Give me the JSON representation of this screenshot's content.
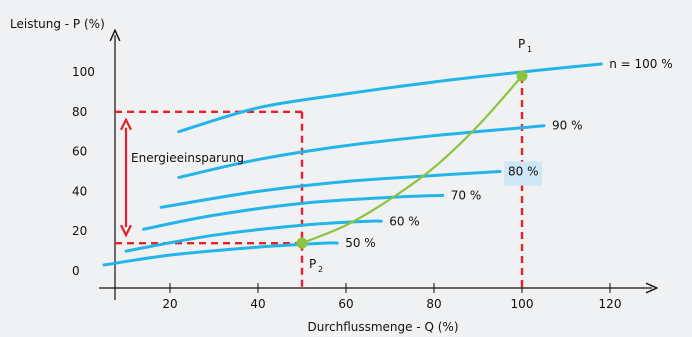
{
  "chart_data": {
    "type": "line",
    "ylabel": "Leistung - P (%)",
    "xlabel": "Durchflussmenge - Q (%)",
    "xlim": [
      0,
      130
    ],
    "ylim": [
      -8,
      110
    ],
    "x_ticks": [
      20,
      40,
      60,
      80,
      100,
      120
    ],
    "y_ticks": [
      0,
      20,
      40,
      60,
      80,
      100
    ],
    "y_tick_labels": [
      "0",
      "20",
      "40",
      "60",
      "80",
      "100"
    ],
    "grid": false,
    "speed_curves": [
      {
        "name": "n = 100 %",
        "x": [
          22,
          40,
          60,
          80,
          100,
          118
        ],
        "y": [
          70,
          82,
          89,
          95,
          100,
          104
        ]
      },
      {
        "name": "90 %",
        "x": [
          22,
          40,
          60,
          80,
          100,
          105
        ],
        "y": [
          47,
          56,
          63,
          68,
          72,
          73
        ]
      },
      {
        "name": "80 %",
        "x": [
          18,
          40,
          60,
          80,
          95
        ],
        "y": [
          32,
          40,
          45,
          48,
          50
        ]
      },
      {
        "name": "70 %",
        "x": [
          14,
          30,
          50,
          70,
          82
        ],
        "y": [
          21,
          28,
          34,
          37,
          38
        ]
      },
      {
        "name": "60 %",
        "x": [
          10,
          30,
          50,
          65,
          68
        ],
        "y": [
          10,
          18,
          23,
          25,
          25
        ]
      },
      {
        "name": "50 %",
        "x": [
          5,
          20,
          40,
          55,
          58
        ],
        "y": [
          3,
          8,
          12,
          14,
          14
        ]
      }
    ],
    "system_curve": {
      "x": [
        50,
        60,
        70,
        80,
        90,
        100
      ],
      "y": [
        14,
        23,
        36,
        52,
        73,
        98
      ]
    },
    "points": [
      {
        "label": "P",
        "subscript": "1",
        "x": 100,
        "y": 98
      },
      {
        "label": "P",
        "subscript": "2",
        "x": 50,
        "y": 14
      }
    ],
    "annotation": {
      "text": "Energieeinsparung",
      "from_y": 14,
      "to_y": 80,
      "at_x": 50
    },
    "colors": {
      "speed_curve": "#23b5e8",
      "system_curve": "#8cc43c",
      "marker": "#8cc43c",
      "dashed": "#e8202a",
      "arrow": "#e8202a",
      "axis": "#111111",
      "label_highlight": "#cfe6f6"
    }
  }
}
